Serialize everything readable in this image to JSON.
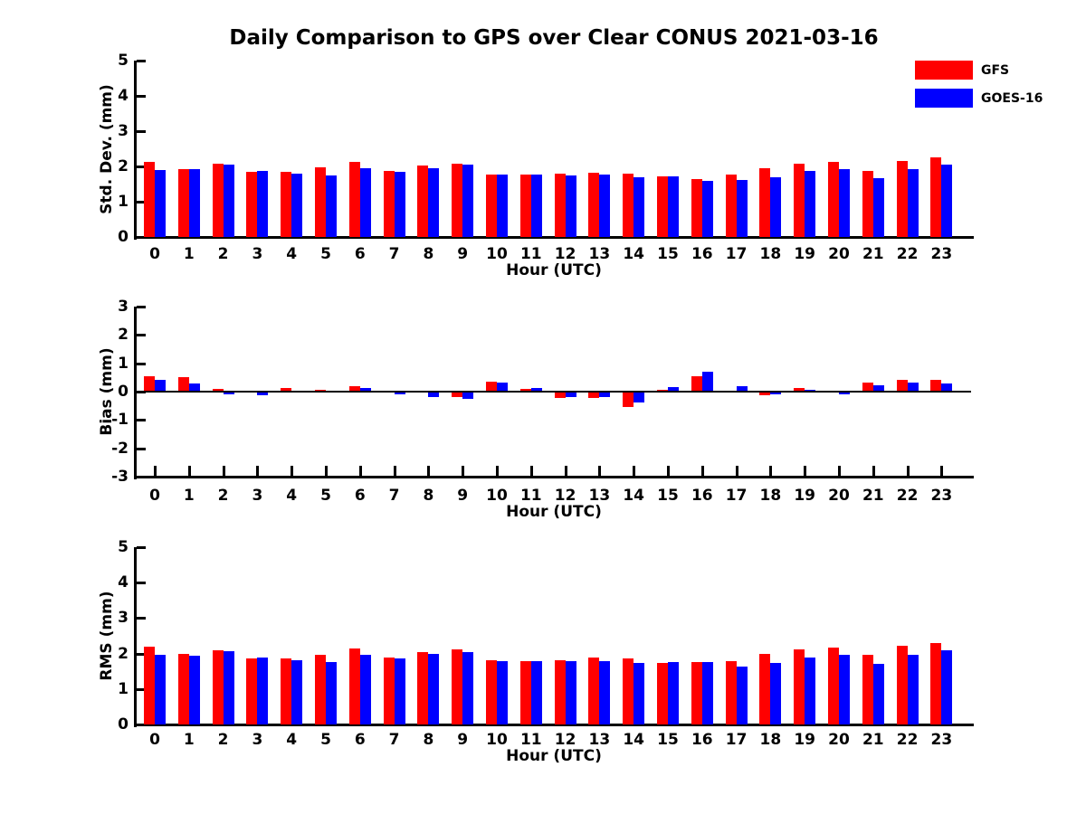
{
  "title": "Daily Comparison to GPS over Clear CONUS 2021-03-16",
  "legend": {
    "position": "top-right",
    "items": [
      {
        "label": "GFS",
        "color": "#ff0000"
      },
      {
        "label": "GOES-16",
        "color": "#0000ff"
      }
    ]
  },
  "colors": {
    "gfs_red": "#ff0000",
    "goes_blue": "#0000ff",
    "axis": "#000000",
    "text": "#000000",
    "background": "#ffffff"
  },
  "chart_data": [
    {
      "type": "bar",
      "title": "",
      "xlabel": "Hour (UTC)",
      "ylabel": "Std. Dev. (mm)",
      "ylim": [
        0,
        5
      ],
      "yticks": [
        0,
        1,
        2,
        3,
        4,
        5
      ],
      "grid": false,
      "categories": [
        "0",
        "1",
        "2",
        "3",
        "4",
        "5",
        "6",
        "7",
        "8",
        "9",
        "10",
        "11",
        "12",
        "13",
        "14",
        "15",
        "16",
        "17",
        "18",
        "19",
        "20",
        "21",
        "22",
        "23"
      ],
      "series": [
        {
          "name": "GFS",
          "color": "#ff0000",
          "values": [
            2.12,
            1.93,
            2.07,
            1.85,
            1.85,
            1.97,
            2.12,
            1.87,
            2.02,
            2.08,
            1.78,
            1.77,
            1.8,
            1.82,
            1.79,
            1.73,
            1.64,
            1.76,
            1.96,
            2.08,
            2.13,
            1.88,
            2.16,
            2.26
          ]
        },
        {
          "name": "GOES-16",
          "color": "#0000ff",
          "values": [
            1.9,
            1.93,
            2.04,
            1.87,
            1.79,
            1.74,
            1.95,
            1.84,
            1.96,
            2.04,
            1.76,
            1.78,
            1.75,
            1.77,
            1.69,
            1.71,
            1.58,
            1.61,
            1.7,
            1.86,
            1.92,
            1.67,
            1.92,
            2.06
          ]
        }
      ]
    },
    {
      "type": "bar",
      "title": "",
      "xlabel": "Hour (UTC)",
      "ylabel": "Bias (mm)",
      "ylim": [
        -3,
        3
      ],
      "yticks": [
        -3,
        -2,
        -1,
        0,
        1,
        2,
        3
      ],
      "grid": false,
      "zero_line": true,
      "categories": [
        "0",
        "1",
        "2",
        "3",
        "4",
        "5",
        "6",
        "7",
        "8",
        "9",
        "10",
        "11",
        "12",
        "13",
        "14",
        "15",
        "16",
        "17",
        "18",
        "19",
        "20",
        "21",
        "22",
        "23"
      ],
      "series": [
        {
          "name": "GFS",
          "color": "#ff0000",
          "values": [
            0.55,
            0.5,
            0.08,
            -0.03,
            0.12,
            0.06,
            0.18,
            -0.02,
            -0.04,
            -0.2,
            0.35,
            0.08,
            -0.22,
            -0.23,
            -0.54,
            0.05,
            0.55,
            0.02,
            -0.13,
            0.13,
            -0.02,
            0.32,
            0.42,
            0.43
          ]
        },
        {
          "name": "GOES-16",
          "color": "#0000ff",
          "values": [
            0.4,
            0.3,
            -0.08,
            -0.12,
            -0.04,
            -0.02,
            0.12,
            -0.08,
            -0.18,
            -0.24,
            0.33,
            0.12,
            -0.19,
            -0.2,
            -0.38,
            0.16,
            0.7,
            0.18,
            -0.08,
            0.05,
            -0.08,
            0.22,
            0.33,
            0.28
          ]
        }
      ]
    },
    {
      "type": "bar",
      "title": "",
      "xlabel": "Hour (UTC)",
      "ylabel": "RMS (mm)",
      "ylim": [
        0,
        5
      ],
      "yticks": [
        0,
        1,
        2,
        3,
        4,
        5
      ],
      "grid": false,
      "categories": [
        "0",
        "1",
        "2",
        "3",
        "4",
        "5",
        "6",
        "7",
        "8",
        "9",
        "10",
        "11",
        "12",
        "13",
        "14",
        "15",
        "16",
        "17",
        "18",
        "19",
        "20",
        "21",
        "22",
        "23"
      ],
      "series": [
        {
          "name": "GFS",
          "color": "#ff0000",
          "values": [
            2.2,
            2.0,
            2.09,
            1.87,
            1.86,
            1.97,
            2.14,
            1.89,
            2.04,
            2.11,
            1.8,
            1.78,
            1.82,
            1.88,
            1.86,
            1.73,
            1.77,
            1.78,
            1.99,
            2.11,
            2.17,
            1.96,
            2.23,
            2.3
          ]
        },
        {
          "name": "GOES-16",
          "color": "#0000ff",
          "values": [
            1.96,
            1.95,
            2.06,
            1.88,
            1.81,
            1.75,
            1.97,
            1.86,
            1.98,
            2.04,
            1.78,
            1.78,
            1.79,
            1.78,
            1.73,
            1.75,
            1.75,
            1.63,
            1.74,
            1.89,
            1.97,
            1.72,
            1.97,
            2.09
          ]
        }
      ]
    }
  ]
}
